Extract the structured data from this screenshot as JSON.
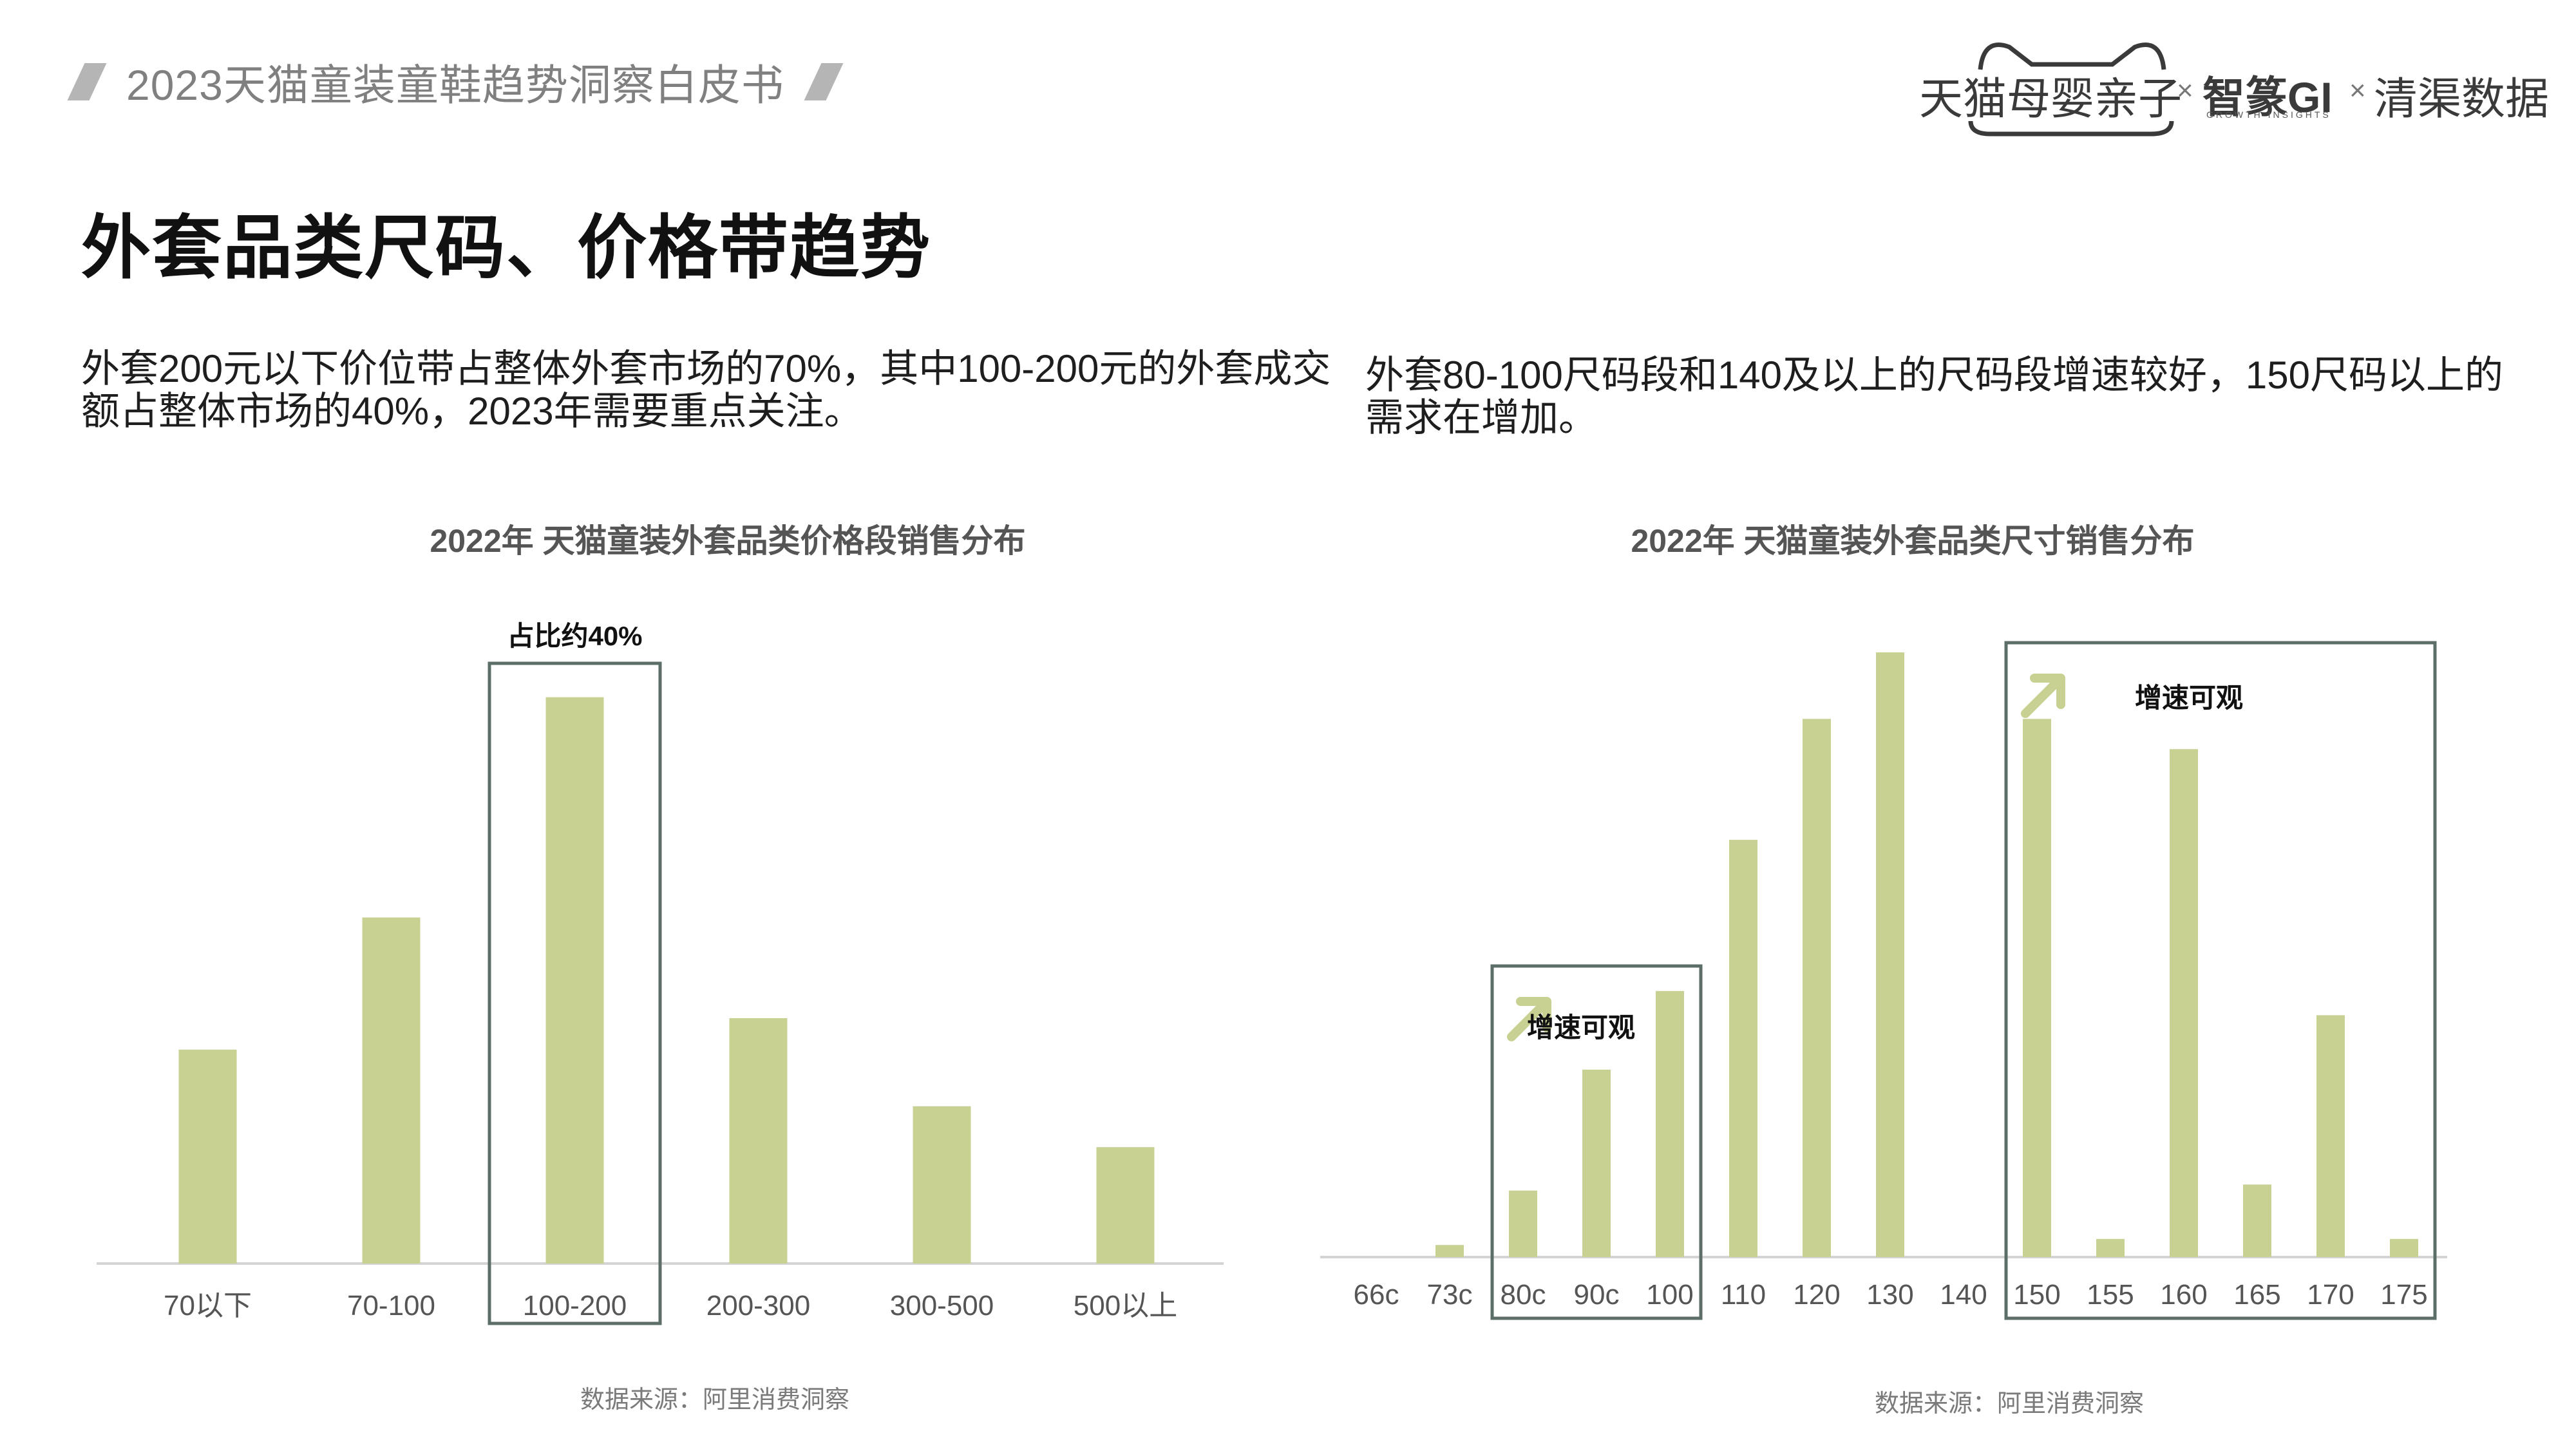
{
  "header": {
    "report_title": "2023天猫童装童鞋趋势洞察白皮书",
    "logo": {
      "brand1": "天猫母婴亲子",
      "times": "×",
      "brand2": "智篆GI",
      "brand2_sub": "GROWTH INSIGHTS",
      "brand3": "清渠数据"
    }
  },
  "page_title": "外套品类尺码、价格带趋势",
  "left": {
    "description": "外套200元以下价位带占整体外套市场的70%，其中100-200元的外套成交额占整体市场的40%，2023年需要重点关注。",
    "chart_title": "2022年 天猫童装外套品类价格段销售分布",
    "source": "数据来源：阿里消费洞察",
    "highlight_label": "占比约40%"
  },
  "right": {
    "description": "外套80-100尺码段和140及以上的尺码段增速较好，150尺码以上的需求在增加。",
    "chart_title": "2022年 天猫童装外套品类尺寸销售分布",
    "source": "数据来源：阿里消费洞察",
    "highlight_label_1": "增速可观",
    "highlight_label_2": "增速可观"
  },
  "chart_data": [
    {
      "type": "bar",
      "title": "2022年 天猫童装外套品类价格段销售分布",
      "categories": [
        "70以下",
        "70-100",
        "100-200",
        "200-300",
        "300-500",
        "500以上"
      ],
      "values": [
        34,
        55,
        90,
        39,
        25,
        18.5
      ],
      "ylim": [
        0,
        100
      ],
      "highlight_categories": [
        "100-200"
      ],
      "bar_color": "#c8d092",
      "annotations": [
        {
          "text": "占比约40%",
          "category": "100-200"
        }
      ]
    },
    {
      "type": "bar",
      "title": "2022年 天猫童装外套品类尺寸销售分布",
      "categories": [
        "66c",
        "73c",
        "80c",
        "90c",
        "100",
        "110",
        "120",
        "130",
        "140",
        "150",
        "155",
        "160",
        "165",
        "170",
        "175"
      ],
      "values": [
        0,
        2,
        11,
        31,
        44,
        69,
        89,
        100,
        0,
        89,
        3,
        84,
        12,
        40,
        3
      ],
      "ylim": [
        0,
        100
      ],
      "highlight_ranges": [
        [
          "80c",
          "100"
        ],
        [
          "150",
          "175"
        ]
      ],
      "bar_color": "#c8d092",
      "annotations": [
        {
          "text": "增速可观",
          "range": [
            "80c",
            "100"
          ]
        },
        {
          "text": "增速可观",
          "range": [
            "150",
            "175"
          ]
        }
      ]
    }
  ]
}
